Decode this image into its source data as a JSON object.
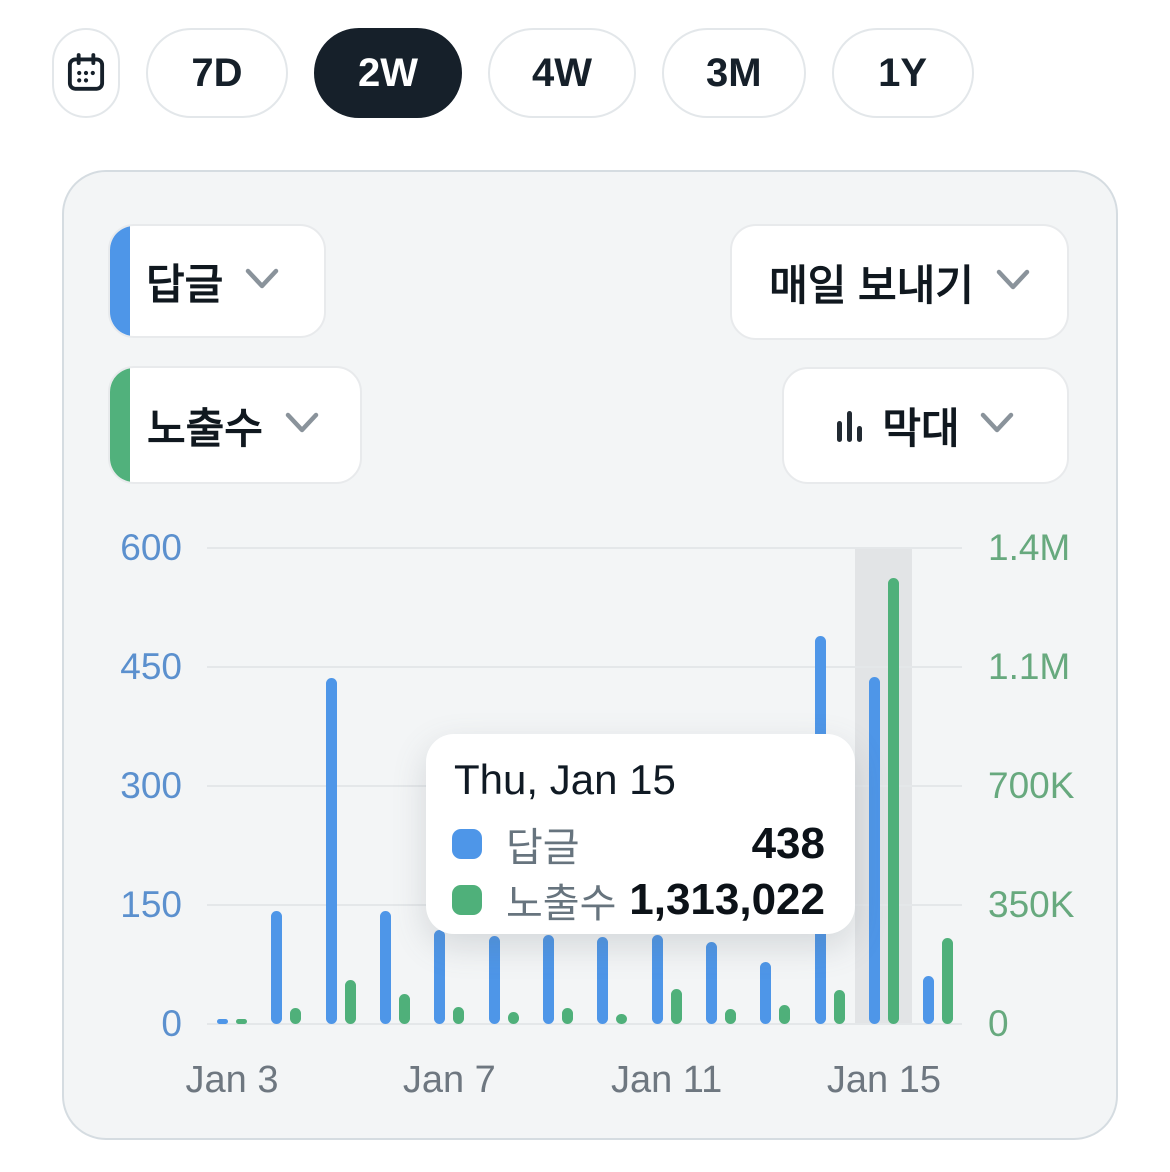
{
  "colors": {
    "reply_blue": "#4E96E8",
    "impressions_green": "#4FB07A",
    "selected_pill_bg": "#16202A",
    "left_axis_text": "#5B90CE",
    "right_axis_text": "#67A97E",
    "highlight_band": "#E2E4E6"
  },
  "time_range": {
    "calendar_icon": "calendar-icon",
    "options": [
      {
        "label": "7D",
        "selected": false
      },
      {
        "label": "2W",
        "selected": true
      },
      {
        "label": "4W",
        "selected": false
      },
      {
        "label": "3M",
        "selected": false
      },
      {
        "label": "1Y",
        "selected": false
      }
    ]
  },
  "controls": {
    "metric1": {
      "label": "답글",
      "accent": "#4E96E8",
      "chevron_icon": "chevron-down-icon"
    },
    "metric2": {
      "label": "노출수",
      "accent": "#51B17C",
      "chevron_icon": "chevron-down-icon"
    },
    "frequency": {
      "label": "매일 보내기",
      "chevron_icon": "chevron-down-icon"
    },
    "chart_type": {
      "label": "막대",
      "icon": "bar-chart-icon",
      "chevron_icon": "chevron-down-icon"
    }
  },
  "tooltip": {
    "title": "Thu, Jan 15",
    "rows": [
      {
        "label": "답글",
        "value": "438",
        "color": "#4E96E8"
      },
      {
        "label": "노출수",
        "value": "1,313,022",
        "color": "#4FB07A"
      }
    ]
  },
  "chart_data": {
    "type": "bar",
    "x": [
      "Jan 3",
      "Jan 4",
      "Jan 5",
      "Jan 6",
      "Jan 7",
      "Jan 8",
      "Jan 9",
      "Jan 10",
      "Jan 11",
      "Jan 12",
      "Jan 13",
      "Jan 14",
      "Jan 15",
      "Jan 16"
    ],
    "x_ticks": [
      {
        "index": 0,
        "label": "Jan 3"
      },
      {
        "index": 4,
        "label": "Jan 7"
      },
      {
        "index": 8,
        "label": "Jan 11"
      },
      {
        "index": 12,
        "label": "Jan 15"
      }
    ],
    "series": [
      {
        "name": "답글",
        "axis": "left",
        "color": "#4E96E8",
        "values": [
          5,
          142,
          436,
          143,
          118,
          111,
          112,
          110,
          112,
          103,
          78,
          489,
          438,
          60
        ]
      },
      {
        "name": "노출수",
        "axis": "right",
        "color": "#4FB07A",
        "values": [
          8000,
          48000,
          130000,
          88000,
          49000,
          35000,
          47000,
          30000,
          103000,
          44000,
          55000,
          100000,
          1313022,
          252000
        ]
      }
    ],
    "left_axis": {
      "ticks": [
        "0",
        "150",
        "300",
        "450",
        "600"
      ],
      "max": 600
    },
    "right_axis": {
      "ticks": [
        "0",
        "350K",
        "700K",
        "1.1M",
        "1.4M"
      ],
      "max": 1400000
    },
    "highlighted_index": 12,
    "grid": true,
    "legend_position": "tooltip"
  }
}
